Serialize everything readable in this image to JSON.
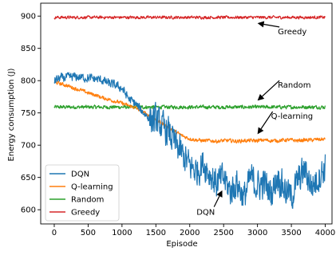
{
  "chart_data": {
    "type": "line",
    "title": "",
    "xlabel": "Episode",
    "ylabel": "Energy consumption (J)",
    "xlim": [
      -200,
      4100
    ],
    "ylim": [
      578,
      920
    ],
    "xticks": [
      0,
      500,
      1000,
      1500,
      2000,
      2500,
      3000,
      3500,
      4000
    ],
    "yticks": [
      600,
      650,
      700,
      750,
      800,
      850,
      900
    ],
    "grid": false,
    "legend_placement": "lower-left",
    "series": [
      {
        "name": "DQN",
        "color": "#1f77b4",
        "x": [
          0,
          100,
          200,
          300,
          400,
          500,
          600,
          700,
          800,
          900,
          1000,
          1100,
          1200,
          1300,
          1400,
          1500,
          1600,
          1700,
          1800,
          1900,
          2000,
          2100,
          2200,
          2300,
          2400,
          2500,
          2600,
          2700,
          2800,
          2900,
          3000,
          3100,
          3200,
          3300,
          3400,
          3500,
          3600,
          3700,
          3800,
          3900,
          4000
        ],
        "y": [
          800,
          804,
          805,
          806,
          805,
          804,
          803,
          801,
          796,
          793,
          788,
          772,
          764,
          752,
          742,
          738,
          728,
          718,
          700,
          684,
          668,
          660,
          672,
          655,
          640,
          650,
          628,
          642,
          618,
          650,
          636,
          642,
          625,
          652,
          632,
          620,
          646,
          662,
          636,
          650,
          666
        ],
        "noise": 6
      },
      {
        "name": "Q-learning",
        "color": "#ff7f0e",
        "x": [
          0,
          100,
          200,
          300,
          400,
          500,
          600,
          700,
          800,
          900,
          1000,
          1100,
          1200,
          1300,
          1400,
          1500,
          1600,
          1700,
          1800,
          1900,
          2000,
          2100,
          2200,
          2300,
          2400,
          2500,
          2600,
          2700,
          2800,
          2900,
          3000,
          3100,
          3200,
          3300,
          3400,
          3500,
          3600,
          3700,
          3800,
          3900,
          4000
        ],
        "y": [
          798,
          795,
          792,
          788,
          785,
          781,
          778,
          774,
          771,
          768,
          765,
          761,
          758,
          752,
          746,
          740,
          733,
          727,
          720,
          714,
          710,
          708,
          707,
          707,
          706,
          707,
          707,
          706,
          707,
          707,
          707,
          708,
          707,
          707,
          708,
          708,
          707,
          708,
          708,
          709,
          709
        ],
        "noise": 2.5
      },
      {
        "name": "Random",
        "color": "#2ca02c",
        "x": [
          0,
          4000
        ],
        "y": [
          759,
          759
        ],
        "noise": 2.5
      },
      {
        "name": "Greedy",
        "color": "#d62728",
        "x": [
          0,
          4000
        ],
        "y": [
          898,
          898
        ],
        "noise": 2
      }
    ],
    "annotations": [
      {
        "text": "Greedy",
        "x": 3300,
        "y": 872,
        "arrow_to": [
          3000,
          889
        ]
      },
      {
        "text": "Random",
        "x": 3300,
        "y": 789,
        "arrow_to": [
          3000,
          769
        ]
      },
      {
        "text": "Q-learning",
        "x": 3200,
        "y": 741,
        "arrow_to": [
          3000,
          717
        ]
      },
      {
        "text": "DQN",
        "x": 2100,
        "y": 592,
        "arrow_to": [
          2480,
          630
        ]
      }
    ]
  }
}
